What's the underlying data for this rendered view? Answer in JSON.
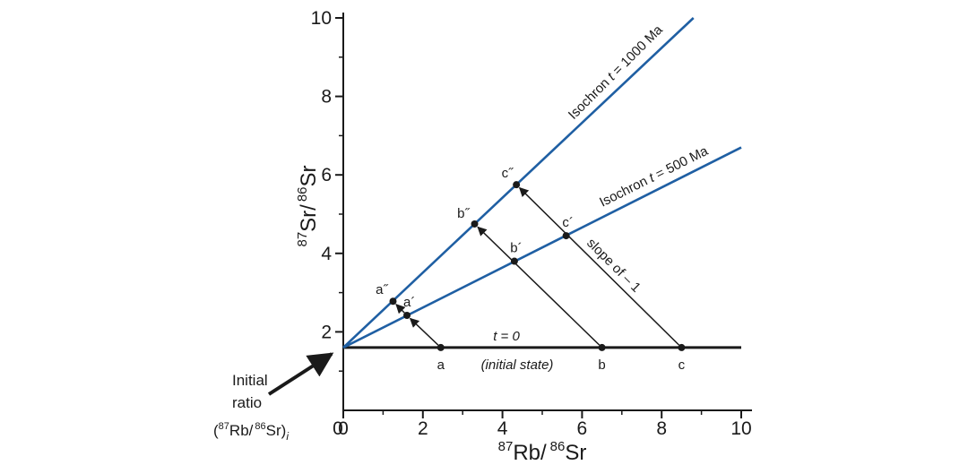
{
  "chart_data": {
    "type": "line",
    "title": "",
    "xlabel": {
      "sup1": "87",
      "base1": "Rb/",
      "sup2": "86",
      "base2": "Sr"
    },
    "ylabel": {
      "sup1": "87",
      "base1": "Sr/",
      "sup2": "86",
      "base2": "Sr"
    },
    "xlim": [
      0,
      10
    ],
    "ylim": [
      0,
      10
    ],
    "x_ticks": [
      "0",
      "2",
      "4",
      "6",
      "8",
      "10"
    ],
    "y_ticks": [
      "2",
      "4",
      "6",
      "8",
      "10"
    ],
    "x_tick_values": [
      0,
      2,
      4,
      6,
      8,
      10
    ],
    "y_tick_values": [
      2,
      4,
      6,
      8,
      10
    ],
    "grid": false,
    "initial_ratio": 1.6,
    "series": [
      {
        "label": "t = 0",
        "x": [
          0,
          10
        ],
        "y": [
          1.6,
          1.6
        ],
        "color": "#1a1a1a"
      },
      {
        "label": "Isochron t = 500 Ma",
        "x": [
          0,
          10
        ],
        "y": [
          1.6,
          6.7
        ],
        "color": "#1f5fa3"
      },
      {
        "label": "Isochron t = 1000 Ma",
        "x": [
          0,
          8.8
        ],
        "y": [
          1.6,
          10.0
        ],
        "color": "#1f5fa3"
      }
    ],
    "line_labels": {
      "t0": "t = 0",
      "t0_sub": "(initial state)",
      "iso500_prefix": "Isochron ",
      "iso500_t": "t",
      "iso500_suffix": " = 500 Ma",
      "iso1000_prefix": "Isochron ",
      "iso1000_t": "t",
      "iso1000_suffix": " = 1000 Ma"
    },
    "points": [
      {
        "label": "a",
        "x": 2.45,
        "y": 1.6
      },
      {
        "label": "b",
        "x": 6.5,
        "y": 1.6
      },
      {
        "label": "c",
        "x": 8.5,
        "y": 1.6
      },
      {
        "label": "a´",
        "x": 1.6,
        "y": 2.42
      },
      {
        "label": "b´",
        "x": 4.3,
        "y": 3.8
      },
      {
        "label": "c´",
        "x": 5.6,
        "y": 4.45
      },
      {
        "label": "a˝",
        "x": 1.25,
        "y": 2.78
      },
      {
        "label": "b˝",
        "x": 3.3,
        "y": 4.75
      },
      {
        "label": "c˝",
        "x": 4.35,
        "y": 5.75
      }
    ],
    "arrows": [
      {
        "from": "a",
        "to": "a´"
      },
      {
        "from": "a´",
        "to": "a˝"
      },
      {
        "from": "b",
        "to": "b˝"
      },
      {
        "from": "c",
        "to": "c˝"
      }
    ],
    "annotations": {
      "slope": "slope of – 1",
      "initial_ratio": {
        "line1": "Initial",
        "line2": "ratio",
        "open": "(",
        "sup1": "87",
        "mid1": "Rb/",
        "sup2": "86",
        "mid2": "Sr)",
        "sub": "i"
      }
    }
  }
}
